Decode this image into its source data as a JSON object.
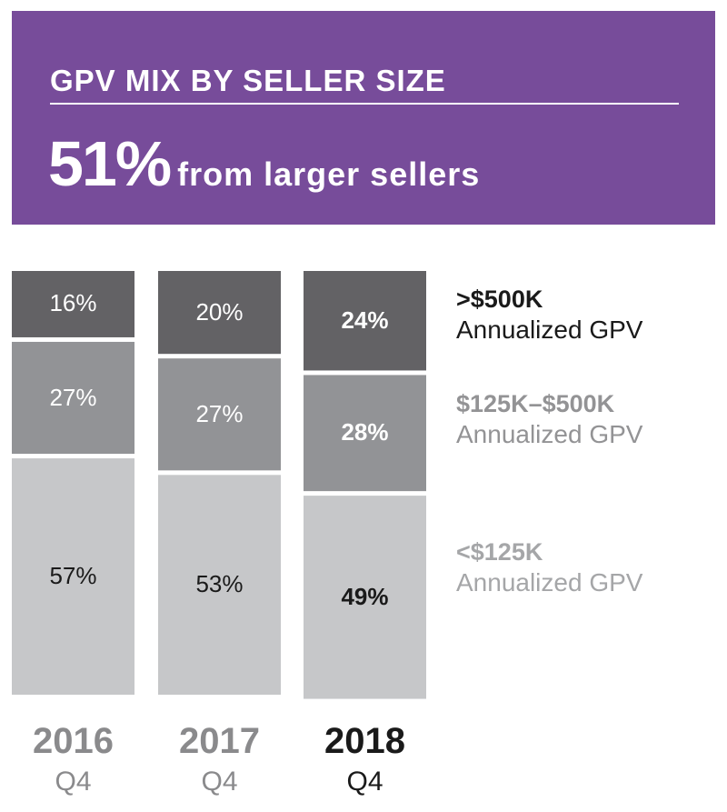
{
  "header": {
    "title": "GPV MIX BY SELLER SIZE",
    "headline_value": "51%",
    "headline_text": "from larger sellers"
  },
  "chart_data": {
    "type": "bar",
    "stacked": true,
    "title": "GPV MIX BY SELLER SIZE",
    "categories": [
      {
        "year": "2016",
        "quarter": "Q4"
      },
      {
        "year": "2017",
        "quarter": "Q4"
      },
      {
        "year": "2018",
        "quarter": "Q4"
      }
    ],
    "series": [
      {
        "name": ">$500K",
        "subtitle": "Annualized GPV",
        "color": "#636265",
        "label_color": "#ffffff",
        "legend_color": "#1a1a1a",
        "values": [
          16,
          20,
          24
        ]
      },
      {
        "name": "$125K–$500K",
        "subtitle": "Annualized GPV",
        "color": "#929396",
        "label_color": "#ffffff",
        "legend_color": "#939395",
        "values": [
          27,
          27,
          28
        ]
      },
      {
        "name": "<$125K",
        "subtitle": "Annualized GPV",
        "color": "#c6c7c9",
        "label_color": "#1a1a1a",
        "legend_color": "#a5a6a8",
        "values": [
          57,
          53,
          49
        ]
      }
    ],
    "highlight_category": 2,
    "unit": "%",
    "ylim": [
      0,
      100
    ]
  }
}
